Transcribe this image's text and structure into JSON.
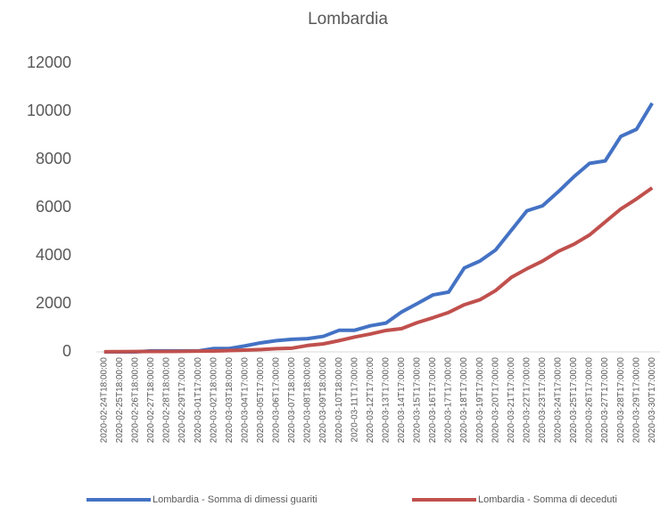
{
  "chart_data": {
    "type": "line",
    "title": "Lombardia",
    "categories": [
      "2020-02-24T18:00:00",
      "2020-02-25T18:00:00",
      "2020-02-26T18:00:00",
      "2020-02-27T18:00:00",
      "2020-02-28T18:00:00",
      "2020-02-29T17:00:00",
      "2020-03-01T17:00:00",
      "2020-03-02T18:00:00",
      "2020-03-03T18:00:00",
      "2020-03-04T17:00:00",
      "2020-03-05T17:00:00",
      "2020-03-06T17:00:00",
      "2020-03-07T18:00:00",
      "2020-03-08T18:00:00",
      "2020-03-09T18:00:00",
      "2020-03-10T18:00:00",
      "2020-03-11T17:00:00",
      "2020-03-12T17:00:00",
      "2020-03-13T17:00:00",
      "2020-03-14T17:00:00",
      "2020-03-15T17:00:00",
      "2020-03-16T17:00:00",
      "2020-03-17T17:00:00",
      "2020-03-18T17:00:00",
      "2020-03-19T17:00:00",
      "2020-03-20T17:00:00",
      "2020-03-21T17:00:00",
      "2020-03-22T17:00:00",
      "2020-03-23T17:00:00",
      "2020-03-24T17:00:00",
      "2020-03-25T17:00:00",
      "2020-03-26T17:00:00",
      "2020-03-27T17:00:00",
      "2020-03-28T17:00:00",
      "2020-03-29T17:00:00",
      "2020-03-30T17:00:00"
    ],
    "series": [
      {
        "name": "Lombardia - Somma di dimessi guariti",
        "color": "#4472c4",
        "values": [
          0,
          0,
          0,
          40,
          40,
          40,
          40,
          139,
          139,
          250,
          376,
          469,
          524,
          550,
          646,
          896,
          900,
          1085,
          1198,
          1660,
          2011,
          2368,
          2485,
          3488,
          3778,
          4235,
          5050,
          5865,
          6075,
          6657,
          7281,
          7839,
          7940,
          8962,
          9255,
          10337
        ]
      },
      {
        "name": "Lombardia - Somma di deceduti",
        "color": "#c0504d",
        "values": [
          6,
          9,
          14,
          17,
          17,
          23,
          31,
          38,
          55,
          73,
          98,
          135,
          154,
          267,
          333,
          468,
          617,
          744,
          890,
          966,
          1218,
          1420,
          1640,
          1959,
          2168,
          2549,
          3095,
          3456,
          3776,
          4178,
          4474,
          4861,
          5402,
          5944,
          6360,
          6818
        ]
      }
    ],
    "ylim": [
      0,
      12000
    ],
    "yticks": [
      0,
      2000,
      4000,
      6000,
      8000,
      10000,
      12000
    ],
    "grid": false,
    "legend": "bottom"
  }
}
